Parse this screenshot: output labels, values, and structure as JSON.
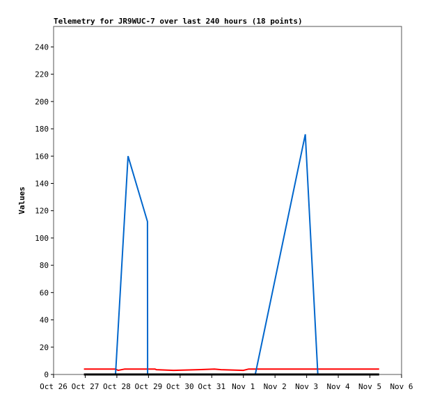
{
  "chart_data": {
    "type": "line",
    "title": "Telemetry for JR9WUC-7 over last 240 hours (18 points)",
    "xlabel": "",
    "ylabel": "Values",
    "ylim": [
      0,
      255
    ],
    "yticks": [
      0,
      20,
      40,
      60,
      80,
      100,
      120,
      140,
      160,
      180,
      200,
      220,
      240
    ],
    "xticks": [
      "Oct 26",
      "Oct 27",
      "Oct 28",
      "Oct 29",
      "Oct 30",
      "Oct 31",
      "Nov 1",
      "Nov 2",
      "Nov 3",
      "Nov 4",
      "Nov 5",
      "Nov 6"
    ],
    "xlim": [
      "Oct 26 00:00",
      "Nov 6 00:00"
    ],
    "grid": false,
    "series": [
      {
        "color": "#000000",
        "points": [
          [
            "Oct 26 23:00",
            0
          ],
          [
            "Nov 5 07:00",
            0
          ]
        ]
      },
      {
        "color": "#ff0000",
        "points": [
          [
            "Oct 26 23:00",
            4
          ],
          [
            "Oct 27 23:00",
            4
          ],
          [
            "Oct 28 01:00",
            3
          ],
          [
            "Oct 28 06:00",
            4
          ],
          [
            "Oct 29 05:00",
            4
          ],
          [
            "Oct 29 06:00",
            3.5
          ],
          [
            "Oct 29 19:00",
            3
          ],
          [
            "Oct 30 14:00",
            3.5
          ],
          [
            "Oct 31 02:00",
            4
          ],
          [
            "Oct 31 07:00",
            3.5
          ],
          [
            "Nov 1 00:00",
            3
          ],
          [
            "Nov 1 04:00",
            4
          ],
          [
            "Nov 5 07:00",
            4
          ]
        ]
      },
      {
        "color": "#0066cc",
        "points": [
          [
            "Oct 27 23:00",
            0
          ],
          [
            "Oct 28 08:30",
            160
          ],
          [
            "Oct 28 23:15",
            112
          ],
          [
            "Oct 28 23:20",
            0
          ],
          [
            "Nov 1 09:00",
            0
          ],
          [
            "Nov 2 23:00",
            176
          ],
          [
            "Nov 3 08:30",
            0
          ]
        ]
      }
    ]
  }
}
